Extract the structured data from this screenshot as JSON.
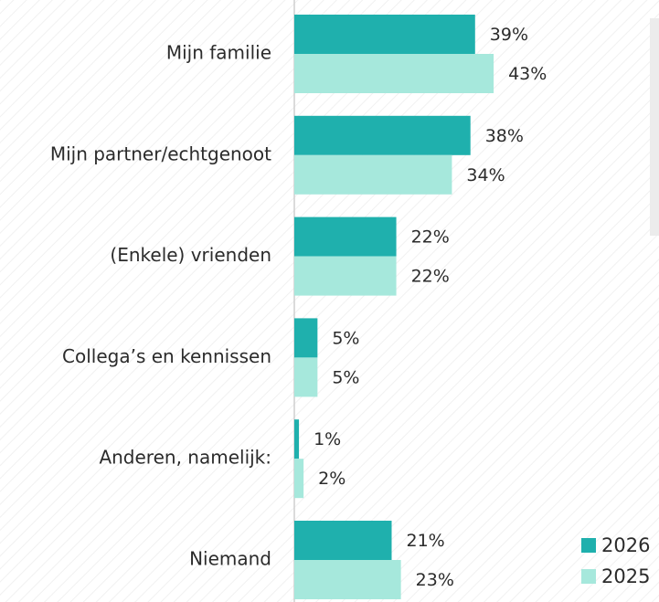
{
  "chart_data": {
    "type": "hbar",
    "categories": [
      "Mijn familie",
      "Mijn partner/echtgenoot",
      "(Enkele) vrienden",
      "Collega’s en kennissen",
      "Anderen, namelijk:",
      "Niemand"
    ],
    "series": [
      {
        "name": "2026",
        "color": "#1fb0ad",
        "values": [
          39,
          38,
          22,
          5,
          1,
          21
        ],
        "value_labels": [
          "39%",
          "38%",
          "22%",
          "5%",
          "1%",
          "21%"
        ]
      },
      {
        "name": "2025",
        "color": "#a6e8dc",
        "values": [
          43,
          34,
          22,
          5,
          2,
          23
        ],
        "value_labels": [
          "43%",
          "34%",
          "22%",
          "5%",
          "2%",
          "23%"
        ]
      }
    ],
    "xlim": [
      0,
      70
    ]
  }
}
